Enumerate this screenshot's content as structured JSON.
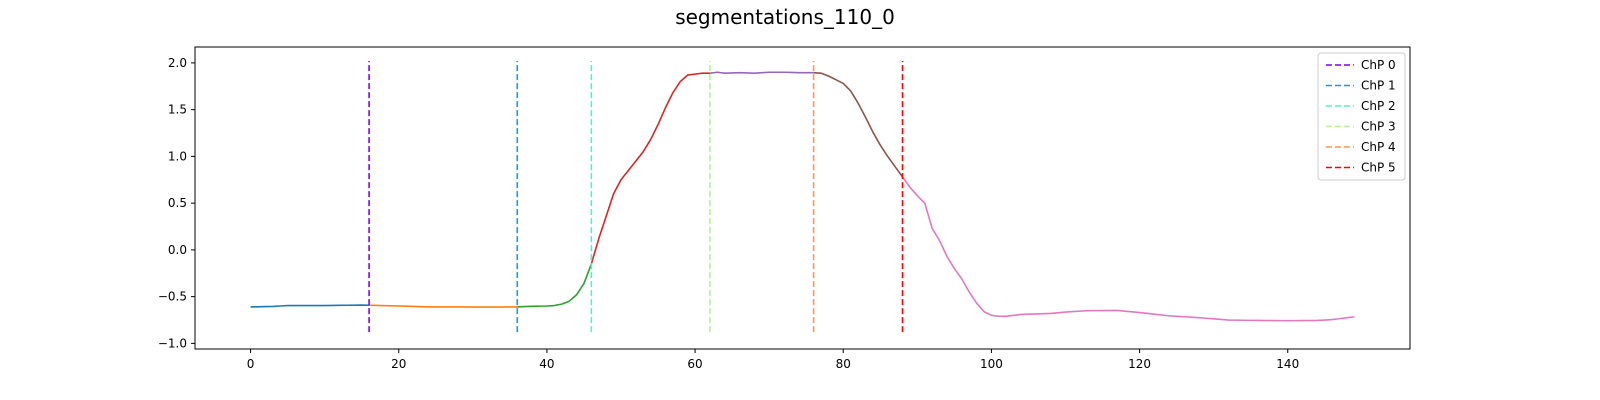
{
  "chart_data": {
    "type": "line",
    "title": "segmentations_110_0",
    "xlabel": "",
    "ylabel": "",
    "xlim": [
      -7.5,
      156.5
    ],
    "ylim": [
      -1.06,
      2.17
    ],
    "x_ticks": [
      0,
      20,
      40,
      60,
      80,
      100,
      120,
      140
    ],
    "y_ticks": [
      -1.0,
      -0.5,
      0.0,
      0.5,
      1.0,
      1.5,
      2.0
    ],
    "x_tick_labels": [
      "0",
      "20",
      "40",
      "60",
      "80",
      "100",
      "120",
      "140"
    ],
    "y_tick_labels": [
      "−1.0",
      "−0.5",
      "0.0",
      "0.5",
      "1.0",
      "1.5",
      "2.0"
    ],
    "grid": false,
    "legend_position": "top-right",
    "signal": {
      "x_start": 0,
      "x_end": 149,
      "knots": [
        [
          0,
          -0.61
        ],
        [
          3,
          -0.605
        ],
        [
          5,
          -0.595
        ],
        [
          10,
          -0.595
        ],
        [
          15,
          -0.59
        ],
        [
          16,
          -0.592
        ],
        [
          20,
          -0.6
        ],
        [
          24,
          -0.61
        ],
        [
          28,
          -0.61
        ],
        [
          32,
          -0.612
        ],
        [
          36,
          -0.61
        ],
        [
          38,
          -0.603
        ],
        [
          40,
          -0.6
        ],
        [
          41,
          -0.595
        ],
        [
          42,
          -0.58
        ],
        [
          43,
          -0.55
        ],
        [
          44,
          -0.48
        ],
        [
          45,
          -0.36
        ],
        [
          46,
          -0.15
        ],
        [
          47,
          0.12
        ],
        [
          48,
          0.36
        ],
        [
          49,
          0.6
        ],
        [
          50,
          0.75
        ],
        [
          51,
          0.85
        ],
        [
          52,
          0.95
        ],
        [
          53,
          1.05
        ],
        [
          54,
          1.18
        ],
        [
          55,
          1.34
        ],
        [
          56,
          1.52
        ],
        [
          57,
          1.68
        ],
        [
          58,
          1.8
        ],
        [
          59,
          1.87
        ],
        [
          60,
          1.88
        ],
        [
          61,
          1.89
        ],
        [
          62,
          1.89
        ],
        [
          63,
          1.9
        ],
        [
          64,
          1.89
        ],
        [
          66,
          1.895
        ],
        [
          68,
          1.89
        ],
        [
          70,
          1.9
        ],
        [
          72,
          1.9
        ],
        [
          74,
          1.895
        ],
        [
          76,
          1.895
        ],
        [
          77,
          1.89
        ],
        [
          78,
          1.86
        ],
        [
          79,
          1.82
        ],
        [
          80,
          1.78
        ],
        [
          81,
          1.7
        ],
        [
          82,
          1.57
        ],
        [
          83,
          1.42
        ],
        [
          84,
          1.26
        ],
        [
          85,
          1.12
        ],
        [
          86,
          1.0
        ],
        [
          87,
          0.89
        ],
        [
          88,
          0.78
        ],
        [
          89,
          0.67
        ],
        [
          90,
          0.58
        ],
        [
          91,
          0.5
        ],
        [
          92,
          0.23
        ],
        [
          93,
          0.1
        ],
        [
          94,
          -0.07
        ],
        [
          95,
          -0.2
        ],
        [
          96,
          -0.31
        ],
        [
          97,
          -0.45
        ],
        [
          98,
          -0.57
        ],
        [
          99,
          -0.66
        ],
        [
          100,
          -0.7
        ],
        [
          101,
          -0.71
        ],
        [
          102,
          -0.71
        ],
        [
          104,
          -0.69
        ],
        [
          108,
          -0.68
        ],
        [
          110,
          -0.665
        ],
        [
          113,
          -0.65
        ],
        [
          117,
          -0.648
        ],
        [
          120,
          -0.67
        ],
        [
          124,
          -0.705
        ],
        [
          128,
          -0.725
        ],
        [
          132,
          -0.75
        ],
        [
          136,
          -0.755
        ],
        [
          140,
          -0.757
        ],
        [
          144,
          -0.755
        ],
        [
          146,
          -0.745
        ],
        [
          149,
          -0.715
        ]
      ]
    },
    "segments": [
      {
        "x_from": 0,
        "x_to": 16,
        "color": "#1f77b4"
      },
      {
        "x_from": 16,
        "x_to": 36,
        "color": "#ff7f0e"
      },
      {
        "x_from": 36,
        "x_to": 46,
        "color": "#2ca02c"
      },
      {
        "x_from": 46,
        "x_to": 62,
        "color": "#d62728"
      },
      {
        "x_from": 62,
        "x_to": 76,
        "color": "#9467bd"
      },
      {
        "x_from": 76,
        "x_to": 88,
        "color": "#8c564b"
      },
      {
        "x_from": 88,
        "x_to": 149,
        "color": "#e377c2"
      }
    ],
    "change_points": [
      {
        "name": "ChP 0",
        "x": 16,
        "y_from": -0.88,
        "y_to": 2.02,
        "color": "#8000ff"
      },
      {
        "name": "ChP 1",
        "x": 36,
        "y_from": -0.88,
        "y_to": 2.02,
        "color": "#1996f3"
      },
      {
        "name": "ChP 2",
        "x": 46,
        "y_from": -0.88,
        "y_to": 2.02,
        "color": "#4df3ce"
      },
      {
        "name": "ChP 3",
        "x": 62,
        "y_from": -0.88,
        "y_to": 2.02,
        "color": "#b2f396"
      },
      {
        "name": "ChP 4",
        "x": 76,
        "y_from": -0.88,
        "y_to": 2.02,
        "color": "#ff964f"
      },
      {
        "name": "ChP 5",
        "x": 88,
        "y_from": -0.88,
        "y_to": 2.02,
        "color": "#ff0000"
      }
    ]
  }
}
